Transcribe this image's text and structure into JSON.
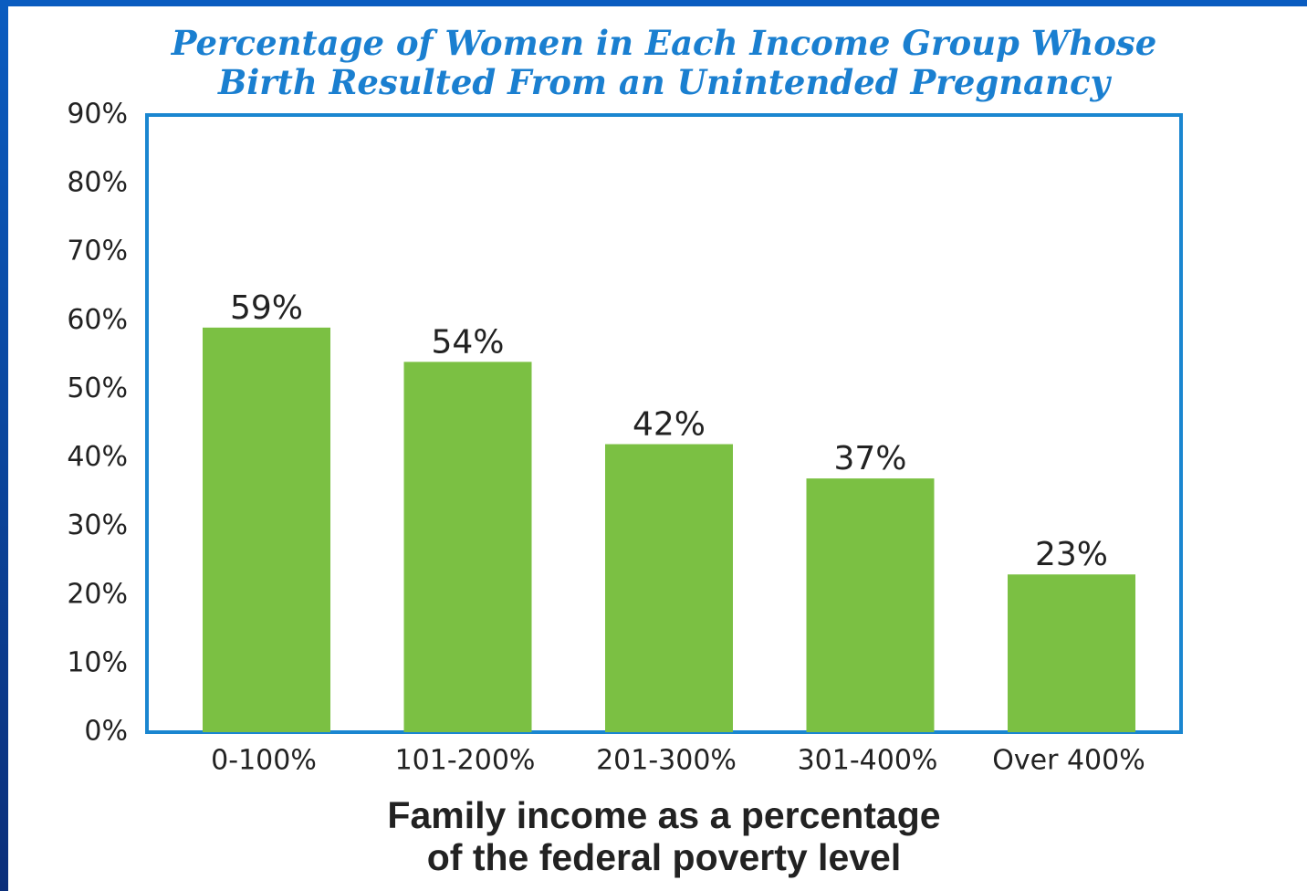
{
  "chart_data": {
    "type": "bar",
    "title": "Percentage of Women in Each Income Group Whose\nBirth Resulted From an Unintended Pregnancy",
    "x_label": "Family income as a percentage\nof the federal poverty level",
    "categories": [
      "0-100%",
      "101-200%",
      "201-300%",
      "301-400%",
      "Over 400%"
    ],
    "values": [
      59,
      54,
      42,
      37,
      23
    ],
    "value_labels": [
      "59%",
      "54%",
      "42%",
      "37%",
      "23%"
    ],
    "color": "#7bc043",
    "ylim": [
      0,
      90
    ],
    "yticks": [
      {
        "value": 0,
        "label": "0%"
      },
      {
        "value": 10,
        "label": "10%"
      },
      {
        "value": 20,
        "label": "20%"
      },
      {
        "value": 30,
        "label": "30%"
      },
      {
        "value": 40,
        "label": "40%"
      },
      {
        "value": 50,
        "label": "50%"
      },
      {
        "value": 60,
        "label": "60%"
      },
      {
        "value": 70,
        "label": "70%"
      },
      {
        "value": 80,
        "label": "80%"
      },
      {
        "value": 90,
        "label": "90%"
      }
    ],
    "grid": false
  }
}
